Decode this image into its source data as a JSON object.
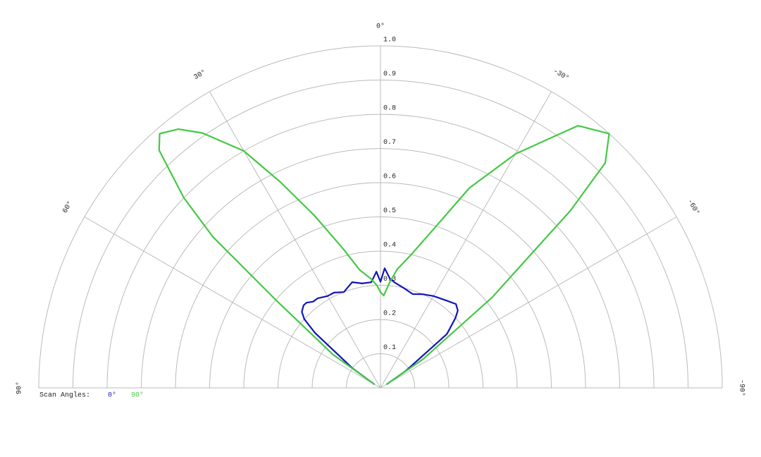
{
  "chart_data": {
    "type": "polar",
    "rlim": [
      0,
      1
    ],
    "rticks": [
      0.1,
      0.2,
      0.3,
      0.4,
      0.5,
      0.6,
      0.7,
      0.8,
      0.9,
      {
        "value": 1,
        "label": "1.0"
      }
    ],
    "thetalim": [
      90,
      -90
    ],
    "thetaticks": [
      {
        "value": 90,
        "label": "90°"
      },
      {
        "value": 60,
        "label": "60°"
      },
      {
        "value": 30,
        "label": "30°"
      },
      {
        "value": 0,
        "label": "0°"
      },
      {
        "value": -30,
        "label": "-30°"
      },
      {
        "value": -60,
        "label": "-60°"
      },
      {
        "value": -90,
        "label": "-90°"
      }
    ],
    "grid": true,
    "legend_title": "Scan Angles:",
    "legend": "bottom-left",
    "x": [
      60,
      55,
      50,
      48,
      46,
      43,
      41,
      38,
      35,
      30,
      26,
      21,
      15,
      10,
      5,
      2,
      0,
      -2,
      -5,
      -8,
      -13,
      -19,
      -24,
      -30,
      -37,
      -42,
      -45,
      -47,
      -51,
      -56,
      -60
    ],
    "series": [
      {
        "name": "0°",
        "color": "#1414b8",
        "values": [
          0.02,
          0.1,
          0.25,
          0.3,
          0.32,
          0.33,
          0.33,
          0.32,
          0.32,
          0.31,
          0.31,
          0.3,
          0.32,
          0.31,
          0.31,
          0.34,
          0.31,
          0.35,
          0.32,
          0.31,
          0.3,
          0.29,
          0.3,
          0.31,
          0.32,
          0.33,
          0.32,
          0.3,
          0.25,
          0.09,
          0.02
        ]
      },
      {
        "name": "90°",
        "color": "#44c844",
        "values": [
          0.02,
          0.17,
          0.4,
          0.66,
          0.8,
          0.95,
          0.985,
          0.96,
          0.91,
          0.8,
          0.67,
          0.54,
          0.42,
          0.35,
          0.32,
          0.3,
          0.28,
          0.27,
          0.31,
          0.35,
          0.4,
          0.5,
          0.64,
          0.79,
          0.96,
          1.0,
          0.93,
          0.76,
          0.42,
          0.15,
          0.02
        ]
      }
    ]
  }
}
